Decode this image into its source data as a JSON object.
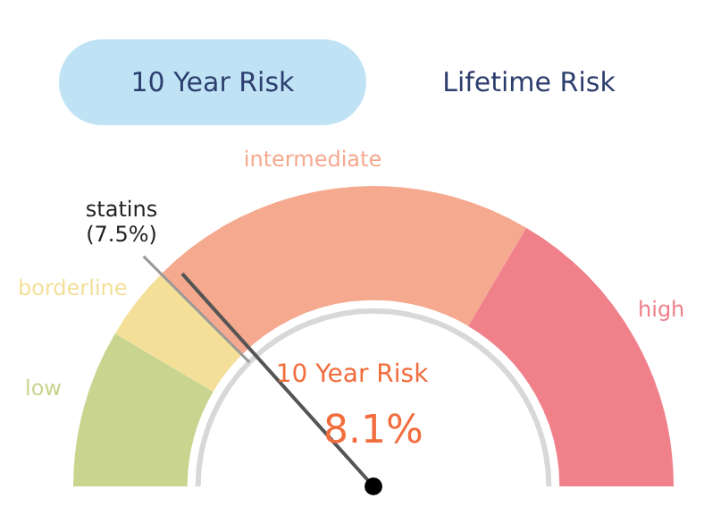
{
  "chart_data": {
    "type": "donut",
    "categories": [
      "low",
      "borderline",
      "intermediate",
      "high"
    ],
    "values": [
      17,
      8,
      42,
      33
    ],
    "colors": [
      "#c9d48f",
      "#f3df98",
      "#f5a98e",
      "#f0808a"
    ],
    "needle": "intermediate",
    "annotations": [
      "10 Year Risk",
      "Lifetime Risk",
      "statins\n(7.5%)",
      "10 Year Risk",
      "8.1%"
    ]
  }
}
